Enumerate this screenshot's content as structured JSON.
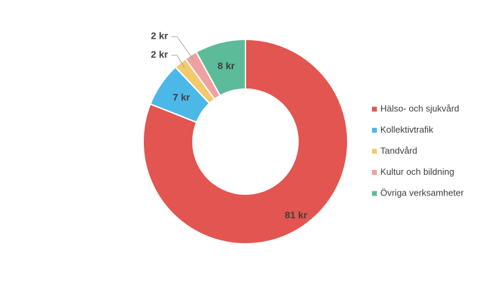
{
  "chart_data": {
    "type": "donut",
    "categories": [
      "Hälso- och sjukvård",
      "Kollektivtrafik",
      "Tandvård",
      "Kultur och bildning",
      "Övriga verksamheter"
    ],
    "values": [
      81,
      7,
      2,
      2,
      8
    ],
    "value_labels": [
      "81 kr",
      "7 kr",
      "2 kr",
      "2 kr",
      "8 kr"
    ],
    "colors": [
      "#e25550",
      "#4cb8e8",
      "#f3c96b",
      "#f0a0a0",
      "#5cbb98"
    ],
    "legend": "right"
  }
}
